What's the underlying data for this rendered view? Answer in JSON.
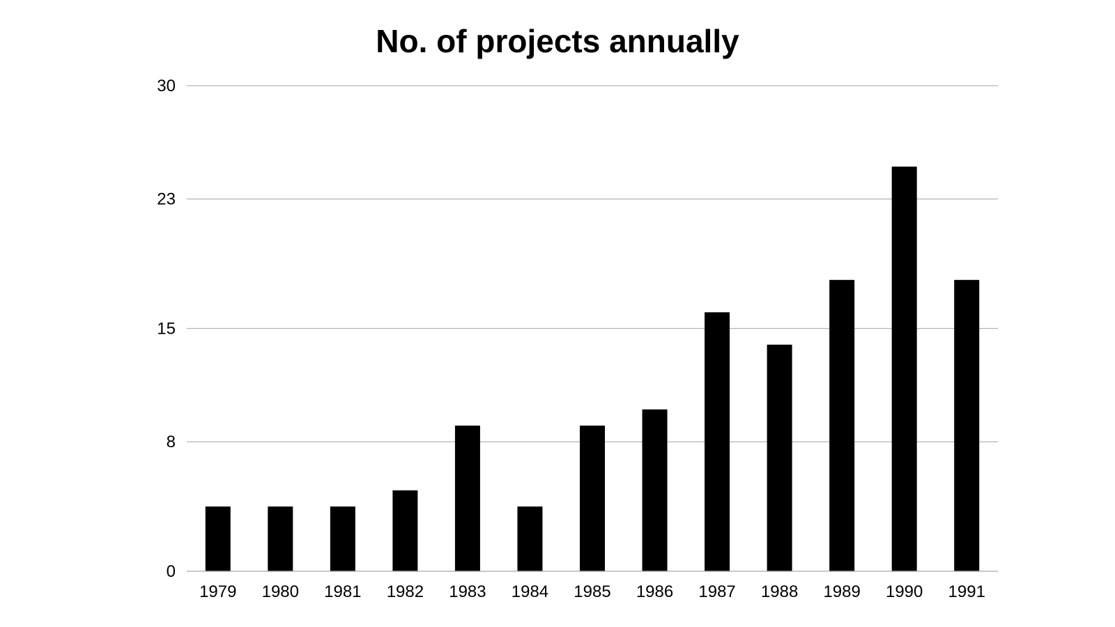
{
  "chart_data": {
    "type": "bar",
    "title": "No. of projects annually",
    "xlabel": "",
    "ylabel": "",
    "categories": [
      "1979",
      "1980",
      "1981",
      "1982",
      "1983",
      "1984",
      "1985",
      "1986",
      "1987",
      "1988",
      "1989",
      "1990",
      "1991"
    ],
    "values": [
      4,
      4,
      4,
      5,
      9,
      4,
      9,
      10,
      16,
      14,
      18,
      25,
      18
    ],
    "ylim": [
      0,
      30
    ],
    "yticks": [
      "0",
      "8",
      "15",
      "23",
      "30"
    ],
    "grid": true,
    "legend": "none",
    "colors": {
      "bar": "#000000",
      "grid": "#b3b3b3",
      "text": "#000000",
      "background": "#ffffff"
    }
  }
}
